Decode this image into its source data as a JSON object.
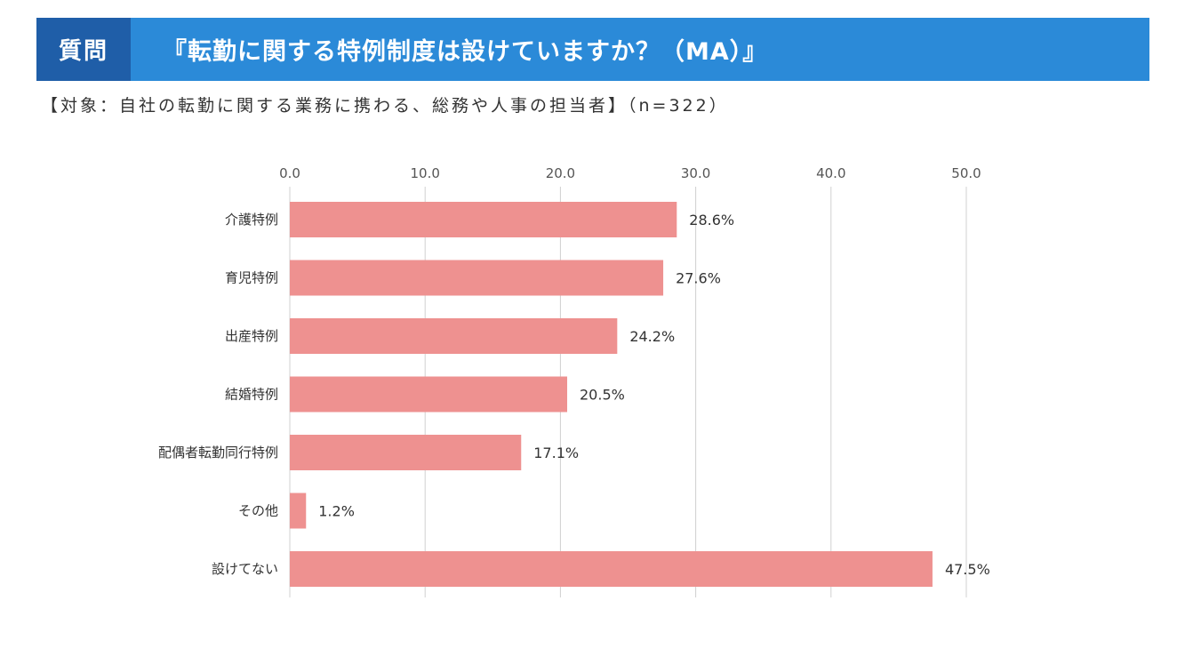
{
  "header": {
    "tag": "質問",
    "title": "『転勤に関する特例制度は設けていますか？（MA）』"
  },
  "subtitle": "【対象：自社の転勤に関する業務に携わる、総務や人事の担当者】（n=322）",
  "colors": {
    "header_bg": "#2b8ad8",
    "header_tag_bg": "#1f5ea8",
    "bar": "#ee9190",
    "grid": "#d0d0d0"
  },
  "chart_data": {
    "type": "bar",
    "orientation": "horizontal",
    "categories": [
      "介護特例",
      "育児特例",
      "出産特例",
      "結婚特例",
      "配偶者転勤同行特例",
      "その他",
      "設けてない"
    ],
    "values": [
      28.6,
      27.6,
      24.2,
      20.5,
      17.1,
      1.2,
      47.5
    ],
    "value_labels": [
      "28.6%",
      "27.6%",
      "24.2%",
      "20.5%",
      "17.1%",
      "1.2%",
      "47.5%"
    ],
    "xlim": [
      0,
      50
    ],
    "ticks": [
      0,
      10,
      20,
      30,
      40,
      50
    ],
    "tick_labels": [
      "0.0",
      "10.0",
      "20.0",
      "30.0",
      "40.0",
      "50.0"
    ],
    "axis_position": "top",
    "grid": true,
    "legend": "none"
  }
}
